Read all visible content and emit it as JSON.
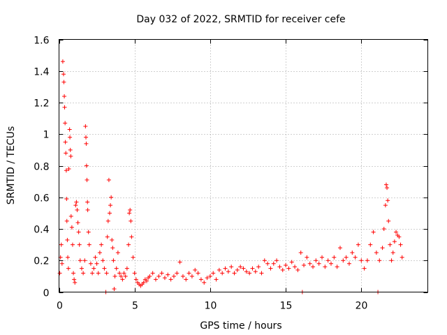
{
  "chart_data": {
    "type": "scatter",
    "title": "Day 032 of 2022, SRMTID for receiver cefe",
    "xlabel": "GPS time / hours",
    "ylabel": "SRMTID / TECUs",
    "xlim": [
      0,
      24.4
    ],
    "ylim": [
      0,
      1.6
    ],
    "x_ticks": [
      0,
      5,
      10,
      15,
      20
    ],
    "x_tick_labels": [
      "0",
      "5",
      "10",
      "15",
      "20"
    ],
    "y_ticks": [
      0,
      0.2,
      0.4,
      0.6,
      0.8,
      1.0,
      1.2,
      1.4,
      1.6
    ],
    "y_tick_labels": [
      "0",
      "0.2",
      "0.4",
      "0.6",
      "0.8",
      "1",
      "1.2",
      "1.4",
      "1.6"
    ],
    "grid": true,
    "series_color": "#ff0000",
    "marker": "plus",
    "series": [
      {
        "name": "SRMTID",
        "points": [
          [
            0.05,
            0.12
          ],
          [
            0.1,
            0.22
          ],
          [
            0.15,
            0.3
          ],
          [
            0.2,
            0.18
          ],
          [
            0.25,
            1.46
          ],
          [
            0.3,
            1.38
          ],
          [
            0.32,
            1.33
          ],
          [
            0.35,
            1.24
          ],
          [
            0.37,
            1.17
          ],
          [
            0.4,
            1.07
          ],
          [
            0.42,
            0.95
          ],
          [
            0.45,
            0.88
          ],
          [
            0.48,
            0.77
          ],
          [
            0.5,
            0.59
          ],
          [
            0.52,
            0.45
          ],
          [
            0.55,
            0.33
          ],
          [
            0.58,
            0.22
          ],
          [
            0.62,
            0.15
          ],
          [
            0.65,
            0.78
          ],
          [
            0.7,
            1.03
          ],
          [
            0.72,
            0.98
          ],
          [
            0.75,
            0.9
          ],
          [
            0.78,
            0.86
          ],
          [
            0.8,
            0.48
          ],
          [
            0.85,
            0.41
          ],
          [
            0.9,
            0.3
          ],
          [
            0.95,
            0.12
          ],
          [
            1.0,
            0.08
          ],
          [
            1.05,
            0.06
          ],
          [
            1.1,
            0.55
          ],
          [
            1.15,
            0.57
          ],
          [
            1.2,
            0.52
          ],
          [
            1.25,
            0.44
          ],
          [
            1.3,
            0.38
          ],
          [
            1.35,
            0.3
          ],
          [
            1.4,
            0.2
          ],
          [
            1.5,
            0.15
          ],
          [
            1.6,
            0.12
          ],
          [
            1.7,
            0.2
          ],
          [
            1.75,
            1.05
          ],
          [
            1.78,
            0.98
          ],
          [
            1.8,
            0.94
          ],
          [
            1.82,
            0.8
          ],
          [
            1.85,
            0.71
          ],
          [
            1.88,
            0.57
          ],
          [
            1.9,
            0.52
          ],
          [
            1.95,
            0.38
          ],
          [
            2.0,
            0.3
          ],
          [
            2.1,
            0.18
          ],
          [
            2.2,
            0.12
          ],
          [
            2.3,
            0.15
          ],
          [
            2.4,
            0.22
          ],
          [
            2.5,
            0.18
          ],
          [
            2.6,
            0.12
          ],
          [
            2.7,
            0.25
          ],
          [
            2.8,
            0.3
          ],
          [
            2.9,
            0.2
          ],
          [
            3.0,
            0.15
          ],
          [
            3.1,
            0.0
          ],
          [
            3.15,
            0.12
          ],
          [
            3.2,
            0.35
          ],
          [
            3.25,
            0.45
          ],
          [
            3.3,
            0.71
          ],
          [
            3.35,
            0.5
          ],
          [
            3.4,
            0.55
          ],
          [
            3.45,
            0.6
          ],
          [
            3.5,
            0.33
          ],
          [
            3.55,
            0.28
          ],
          [
            3.6,
            0.2
          ],
          [
            3.65,
            0.02
          ],
          [
            3.7,
            0.1
          ],
          [
            3.8,
            0.15
          ],
          [
            3.9,
            0.25
          ],
          [
            4.0,
            0.12
          ],
          [
            4.1,
            0.1
          ],
          [
            4.2,
            0.08
          ],
          [
            4.3,
            0.12
          ],
          [
            4.4,
            0.1
          ],
          [
            4.5,
            0.15
          ],
          [
            4.6,
            0.3
          ],
          [
            4.65,
            0.5
          ],
          [
            4.7,
            0.52
          ],
          [
            4.75,
            0.45
          ],
          [
            4.8,
            0.35
          ],
          [
            4.9,
            0.22
          ],
          [
            5.0,
            0.12
          ],
          [
            5.1,
            0.08
          ],
          [
            5.2,
            0.06
          ],
          [
            5.3,
            0.05
          ],
          [
            5.4,
            0.04
          ],
          [
            5.5,
            0.05
          ],
          [
            5.6,
            0.06
          ],
          [
            5.7,
            0.08
          ],
          [
            5.8,
            0.07
          ],
          [
            5.9,
            0.09
          ],
          [
            6.0,
            0.1
          ],
          [
            6.2,
            0.12
          ],
          [
            6.4,
            0.08
          ],
          [
            6.6,
            0.1
          ],
          [
            6.8,
            0.12
          ],
          [
            7.0,
            0.09
          ],
          [
            7.2,
            0.11
          ],
          [
            7.4,
            0.08
          ],
          [
            7.6,
            0.1
          ],
          [
            7.8,
            0.12
          ],
          [
            8.0,
            0.19
          ],
          [
            8.2,
            0.1
          ],
          [
            8.4,
            0.08
          ],
          [
            8.6,
            0.12
          ],
          [
            8.8,
            0.1
          ],
          [
            9.0,
            0.14
          ],
          [
            9.2,
            0.12
          ],
          [
            9.4,
            0.08
          ],
          [
            9.6,
            0.06
          ],
          [
            9.8,
            0.09
          ],
          [
            10.0,
            0.1
          ],
          [
            10.2,
            0.12
          ],
          [
            10.4,
            0.08
          ],
          [
            10.6,
            0.14
          ],
          [
            10.8,
            0.12
          ],
          [
            11.0,
            0.15
          ],
          [
            11.2,
            0.13
          ],
          [
            11.4,
            0.16
          ],
          [
            11.6,
            0.12
          ],
          [
            11.8,
            0.14
          ],
          [
            12.0,
            0.16
          ],
          [
            12.2,
            0.15
          ],
          [
            12.4,
            0.13
          ],
          [
            12.6,
            0.12
          ],
          [
            12.8,
            0.15
          ],
          [
            13.0,
            0.13
          ],
          [
            13.2,
            0.16
          ],
          [
            13.4,
            0.12
          ],
          [
            13.6,
            0.2
          ],
          [
            13.8,
            0.18
          ],
          [
            14.0,
            0.15
          ],
          [
            14.2,
            0.18
          ],
          [
            14.4,
            0.2
          ],
          [
            14.6,
            0.16
          ],
          [
            14.8,
            0.14
          ],
          [
            15.0,
            0.17
          ],
          [
            15.2,
            0.15
          ],
          [
            15.4,
            0.19
          ],
          [
            15.6,
            0.16
          ],
          [
            15.8,
            0.14
          ],
          [
            16.0,
            0.25
          ],
          [
            16.1,
            0.0
          ],
          [
            16.2,
            0.17
          ],
          [
            16.4,
            0.22
          ],
          [
            16.6,
            0.18
          ],
          [
            16.8,
            0.16
          ],
          [
            17.0,
            0.2
          ],
          [
            17.2,
            0.18
          ],
          [
            17.4,
            0.22
          ],
          [
            17.6,
            0.16
          ],
          [
            17.8,
            0.2
          ],
          [
            18.0,
            0.18
          ],
          [
            18.2,
            0.22
          ],
          [
            18.4,
            0.16
          ],
          [
            18.6,
            0.28
          ],
          [
            18.8,
            0.2
          ],
          [
            19.0,
            0.22
          ],
          [
            19.2,
            0.18
          ],
          [
            19.4,
            0.25
          ],
          [
            19.6,
            0.22
          ],
          [
            19.8,
            0.3
          ],
          [
            20.0,
            0.2
          ],
          [
            20.2,
            0.15
          ],
          [
            20.4,
            0.2
          ],
          [
            20.6,
            0.3
          ],
          [
            20.8,
            0.38
          ],
          [
            21.0,
            0.25
          ],
          [
            21.1,
            0.0
          ],
          [
            21.2,
            0.2
          ],
          [
            21.4,
            0.28
          ],
          [
            21.5,
            0.4
          ],
          [
            21.6,
            0.55
          ],
          [
            21.65,
            0.68
          ],
          [
            21.7,
            0.66
          ],
          [
            21.75,
            0.58
          ],
          [
            21.8,
            0.45
          ],
          [
            21.9,
            0.3
          ],
          [
            22.0,
            0.2
          ],
          [
            22.1,
            0.25
          ],
          [
            22.2,
            0.32
          ],
          [
            22.3,
            0.38
          ],
          [
            22.4,
            0.36
          ],
          [
            22.5,
            0.35
          ],
          [
            22.6,
            0.3
          ],
          [
            22.7,
            0.22
          ]
        ]
      }
    ]
  }
}
